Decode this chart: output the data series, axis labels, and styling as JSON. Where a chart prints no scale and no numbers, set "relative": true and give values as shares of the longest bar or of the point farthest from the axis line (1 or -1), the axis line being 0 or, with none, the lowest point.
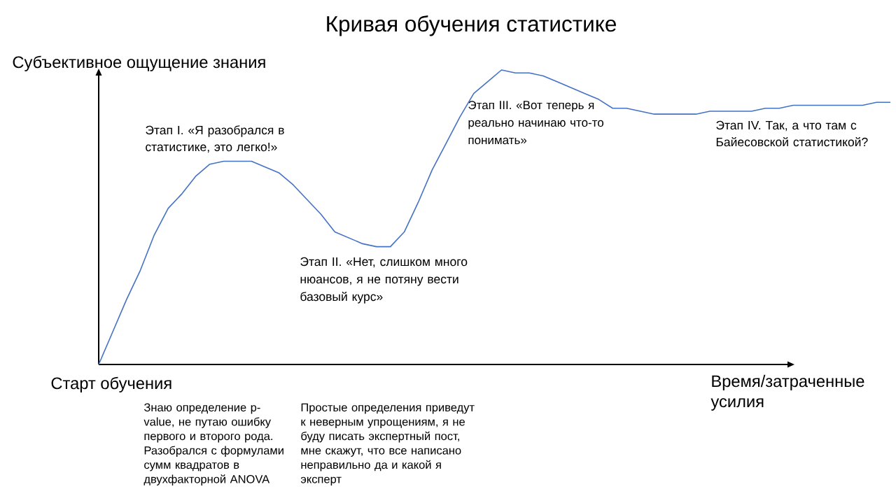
{
  "chart_data": {
    "type": "line",
    "title": "Кривая обучения статистике",
    "xlabel": "Время/затраченные усилия",
    "ylabel": "Субъективное ощущение знания",
    "relative": true,
    "categories": [
      null,
      null,
      null,
      null,
      null,
      null,
      null,
      null,
      null,
      null,
      null,
      null,
      null,
      null,
      null,
      null,
      null,
      null,
      null,
      null,
      null,
      null,
      null,
      null,
      null,
      null,
      null,
      null,
      null,
      null,
      null,
      null,
      null,
      null,
      null,
      null,
      null,
      null,
      null,
      null,
      null,
      null,
      null,
      null,
      null,
      null,
      null,
      null,
      null,
      null,
      null,
      null,
      null,
      null,
      null,
      null,
      null,
      null
    ],
    "values": [
      0.0,
      0.11,
      0.22,
      0.32,
      0.44,
      0.53,
      0.58,
      0.64,
      0.68,
      0.69,
      0.69,
      0.69,
      0.67,
      0.65,
      0.61,
      0.56,
      0.51,
      0.45,
      0.43,
      0.41,
      0.4,
      0.4,
      0.45,
      0.55,
      0.66,
      0.75,
      0.84,
      0.92,
      0.96,
      1.0,
      0.99,
      0.99,
      0.98,
      0.96,
      0.94,
      0.92,
      0.9,
      0.87,
      0.87,
      0.86,
      0.85,
      0.85,
      0.85,
      0.85,
      0.86,
      0.86,
      0.86,
      0.86,
      0.87,
      0.87,
      0.88,
      0.88,
      0.88,
      0.88,
      0.88,
      0.88,
      0.89,
      0.89
    ],
    "color": "#4472c4",
    "annotations": [
      "Старт обучения",
      "Этап I. «Я разобрался в статистике, это легко!»",
      "Этап II. «Нет, слишком много нюансов, я не потяну вести базовый курс»",
      "Этап III. «Вот теперь я реально начинаю что-то понимать»",
      "Этап IV. Так, а что там с Байесовской статистикой?",
      "Знаю определение p-value, не путаю ошибку первого и второго рода. Разобрался с формулами сумм квадратов в двухфакторной ANOVA",
      "Простые определения приведут к неверным упрощениям, я не буду писать экспертный пост, мне скажут, что все написано неправильно да и какой я эксперт"
    ]
  }
}
